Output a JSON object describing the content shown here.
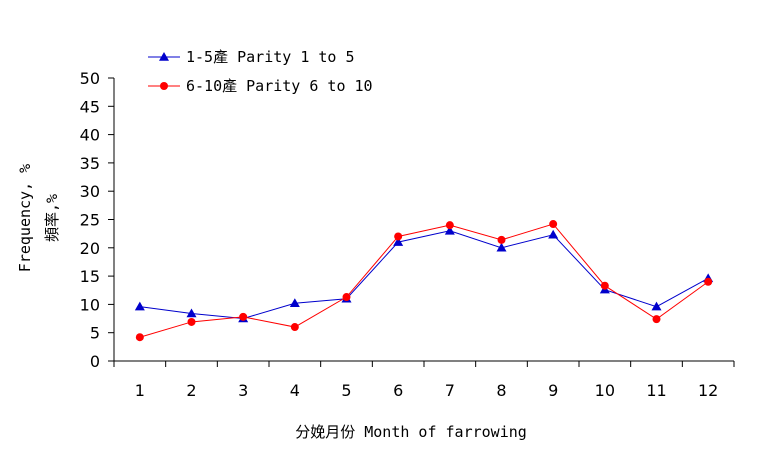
{
  "chart_data": {
    "type": "line",
    "title": "",
    "xlabel": "分娩月份 Month of farrowing",
    "ylabel_line1": "Frequency, %",
    "ylabel_line2": "頻率,%",
    "categories": [
      "1",
      "2",
      "3",
      "4",
      "5",
      "6",
      "7",
      "8",
      "9",
      "10",
      "11",
      "12"
    ],
    "ylim": [
      0,
      50
    ],
    "yticks": [
      0,
      5,
      10,
      15,
      20,
      25,
      30,
      35,
      40,
      45,
      50
    ],
    "grid": false,
    "legend_position": "top-left",
    "series": [
      {
        "name": "1-5產 Parity 1 to 5",
        "color": "#0000cc",
        "marker": "triangle",
        "values": [
          9.6,
          8.4,
          7.5,
          10.2,
          11.0,
          21.0,
          23.0,
          20.0,
          22.3,
          12.6,
          9.6,
          14.6
        ]
      },
      {
        "name": "6-10產 Parity 6 to 10",
        "color": "#ff0000",
        "marker": "circle",
        "values": [
          4.2,
          6.9,
          7.8,
          6.0,
          11.3,
          22.0,
          24.0,
          21.4,
          24.2,
          13.3,
          7.4,
          14.0
        ]
      }
    ]
  }
}
